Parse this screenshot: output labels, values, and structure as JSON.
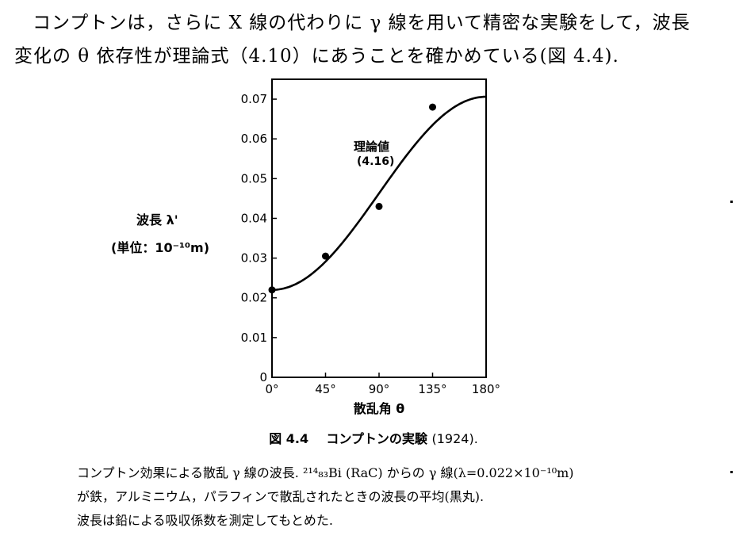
{
  "paragraph": {
    "line1": "コンプトンは，さらに X 線の代わりに γ 線を用いて精密な実験をして，波長",
    "line2": "変化の θ 依存性が理論式（4.10）にあうことを確かめている(図 4.4)."
  },
  "figure": {
    "caption_label": "図 4.4",
    "caption_title": "コンプトンの実験",
    "caption_year": "(1924)."
  },
  "description": {
    "line1": "コンプトン効果による散乱 γ 線の波長. ²¹⁴₈₃Bi (RaC) からの γ 線(λ=0.022×10⁻¹⁰m)",
    "line2": "が鉄，アルミニウム，パラフィンで散乱されたときの波長の平均(黒丸).",
    "line3": "波長は鉛による吸収係数を測定してもとめた."
  },
  "chart_data": {
    "type": "scatter",
    "title": "",
    "xlabel": "散乱角 θ",
    "ylabel_line1": "波長 λ'",
    "ylabel_line2": "(単位：10⁻¹⁰m)",
    "xlim": [
      0,
      180
    ],
    "ylim": [
      0,
      0.075
    ],
    "xticks": [
      0,
      45,
      90,
      135,
      180
    ],
    "xtick_labels": [
      "0°",
      "45°",
      "90°",
      "135°",
      "180°"
    ],
    "yticks": [
      0,
      0.01,
      0.02,
      0.03,
      0.04,
      0.05,
      0.06,
      0.07
    ],
    "ytick_labels": [
      "0",
      "0.01",
      "0.02",
      "0.03",
      "0.04",
      "0.05",
      "0.06",
      "0.07"
    ],
    "grid": false,
    "series": [
      {
        "kind": "points",
        "x": [
          0,
          45,
          90,
          135
        ],
        "y": [
          0.022,
          0.0305,
          0.043,
          0.068
        ]
      },
      {
        "kind": "curve",
        "lambda0": 0.022,
        "compton_wavelength": 0.0243
      }
    ],
    "annotation": {
      "line1": "理論値",
      "line2": "(4.16)",
      "x": 103,
      "y": 0.0575
    }
  }
}
